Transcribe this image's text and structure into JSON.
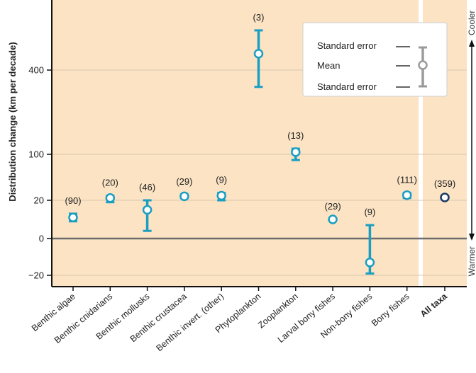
{
  "chart_data": {
    "type": "scatter",
    "ylabel": "Distribution change (km per decade)",
    "y_tick_labels": [
      "400",
      "100",
      "20",
      "0",
      "−20"
    ],
    "y_tick_values": [
      400,
      100,
      20,
      0,
      -20
    ],
    "y_scale": "nonlinear (stretched above 20)",
    "grid": true,
    "categories": [
      "Benthic algae",
      "Benthic cnidarians",
      "Benthic mollusks",
      "Benthic crustacea",
      "Benthic invert. (other)",
      "Phytoplankton",
      "Zooplankton",
      "Larval bony fishes",
      "Non-bony fishes",
      "Bony fishes",
      "All taxa"
    ],
    "counts": [
      "(90)",
      "(20)",
      "(46)",
      "(29)",
      "(9)",
      "(3)",
      "(13)",
      "(29)",
      "(9)",
      "(111)",
      "(359)"
    ],
    "series": [
      {
        "mean": [
          11,
          24,
          15,
          27,
          28,
          470,
          108,
          10,
          -13,
          29,
          25
        ],
        "se_low": [
          9,
          19,
          4,
          24,
          20,
          340,
          90,
          10,
          -19,
          24,
          24
        ],
        "se_high": [
          13,
          28,
          20,
          30,
          33,
          570,
          120,
          10,
          7,
          33,
          26
        ]
      }
    ],
    "legend": {
      "position": "top-right",
      "items": [
        "Standard error",
        "Mean",
        "Standard error"
      ]
    },
    "side_labels": {
      "top": "Cooler",
      "bottom": "Warmer"
    },
    "colors": {
      "accent": "#1a9ec2",
      "highlight": "#1b3a63",
      "background": "#fbe3c4",
      "zero_line": "#6d6d6d"
    }
  }
}
